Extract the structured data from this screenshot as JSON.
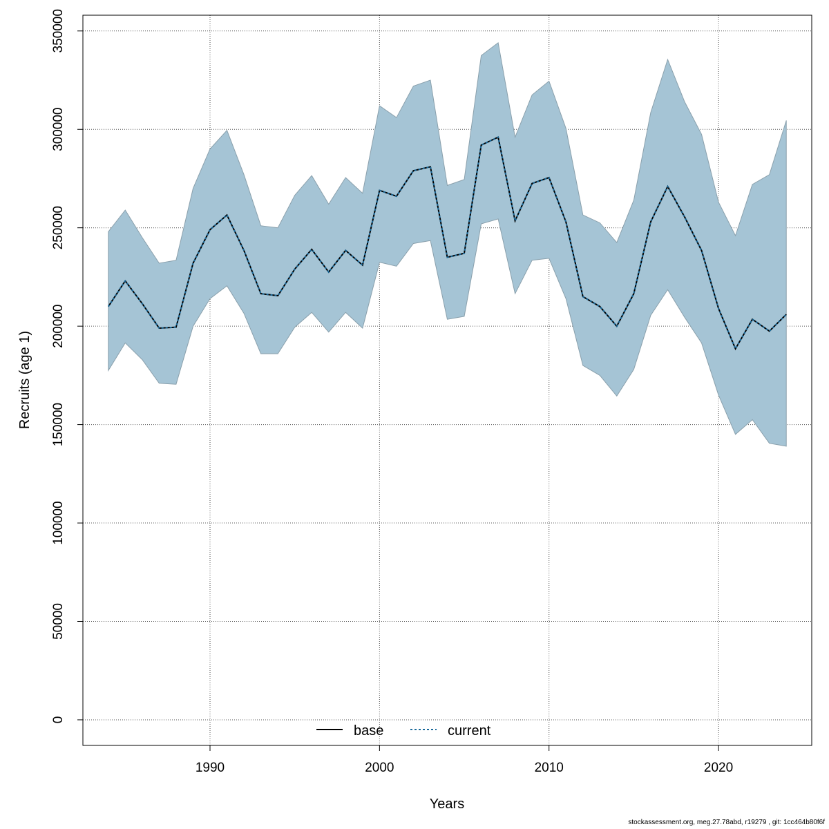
{
  "chart_data": {
    "type": "line",
    "title": "",
    "xlabel": "Years",
    "ylabel": "Recruits (age 1)",
    "xlim": [
      1982.5,
      2025.5
    ],
    "ylim": [
      -13000,
      358000
    ],
    "x_ticks": [
      1990,
      2000,
      2010,
      2020
    ],
    "y_ticks": [
      0,
      50000,
      100000,
      150000,
      200000,
      250000,
      300000,
      350000
    ],
    "grid": true,
    "legend_position": "bottom-center",
    "colors": {
      "band": "#a5c4d5",
      "band_edge": "#8aa0ac",
      "base": "#000000",
      "current": "#1b6a9a"
    },
    "x": [
      1984,
      1985,
      1986,
      1987,
      1988,
      1989,
      1990,
      1991,
      1992,
      1993,
      1994,
      1995,
      1996,
      1997,
      1998,
      1999,
      2000,
      2001,
      2002,
      2003,
      2004,
      2005,
      2006,
      2007,
      2008,
      2009,
      2010,
      2011,
      2012,
      2013,
      2014,
      2015,
      2016,
      2017,
      2018,
      2019,
      2020,
      2021,
      2022,
      2023,
      2024
    ],
    "band_upper": [
      248000,
      259000,
      245000,
      232000,
      233500,
      270000,
      290000,
      299500,
      277000,
      251000,
      250000,
      266500,
      276500,
      262000,
      275500,
      267500,
      312000,
      306000,
      322000,
      325000,
      271500,
      274500,
      337500,
      344000,
      296000,
      317500,
      324500,
      300500,
      256500,
      252500,
      242500,
      264000,
      308500,
      335500,
      314000,
      297500,
      263000,
      246000,
      272000,
      277000,
      304500
    ],
    "band_lower": [
      177500,
      191500,
      183000,
      171000,
      170500,
      200000,
      214000,
      220500,
      206500,
      186000,
      186000,
      199500,
      207000,
      197000,
      207000,
      199000,
      232500,
      230500,
      242000,
      243500,
      203500,
      205000,
      252000,
      254500,
      216500,
      233500,
      234500,
      214000,
      180000,
      175000,
      164500,
      178000,
      205500,
      218500,
      204500,
      191500,
      165000,
      145000,
      152500,
      140500,
      139000
    ],
    "series": [
      {
        "name": "base",
        "values": [
          210000,
          223000,
          211500,
          199000,
          199500,
          232000,
          249000,
          256500,
          238500,
          216500,
          215500,
          229000,
          239000,
          227500,
          238500,
          231000,
          269000,
          266000,
          279000,
          281000,
          235000,
          237000,
          292000,
          296000,
          253500,
          272500,
          275500,
          253000,
          215000,
          210000,
          200000,
          216500,
          253000,
          271000,
          255500,
          238500,
          209000,
          188500,
          203500,
          197500,
          206000
        ]
      },
      {
        "name": "current",
        "values": [
          210000,
          223000,
          211500,
          199000,
          199500,
          232000,
          249000,
          256500,
          238500,
          216500,
          215500,
          229000,
          239000,
          227500,
          238500,
          231000,
          269000,
          266000,
          279000,
          281000,
          235000,
          237000,
          292000,
          296000,
          253500,
          272500,
          275500,
          253000,
          215000,
          210000,
          200000,
          216500,
          253000,
          271000,
          255500,
          238500,
          209000,
          188500,
          203500,
          197500,
          206000
        ]
      }
    ]
  },
  "legend": {
    "base_label": "base",
    "current_label": "current"
  },
  "footer": "stockassessment.org, meg.27.78abd, r19279 , git: 1cc464b80f6f"
}
